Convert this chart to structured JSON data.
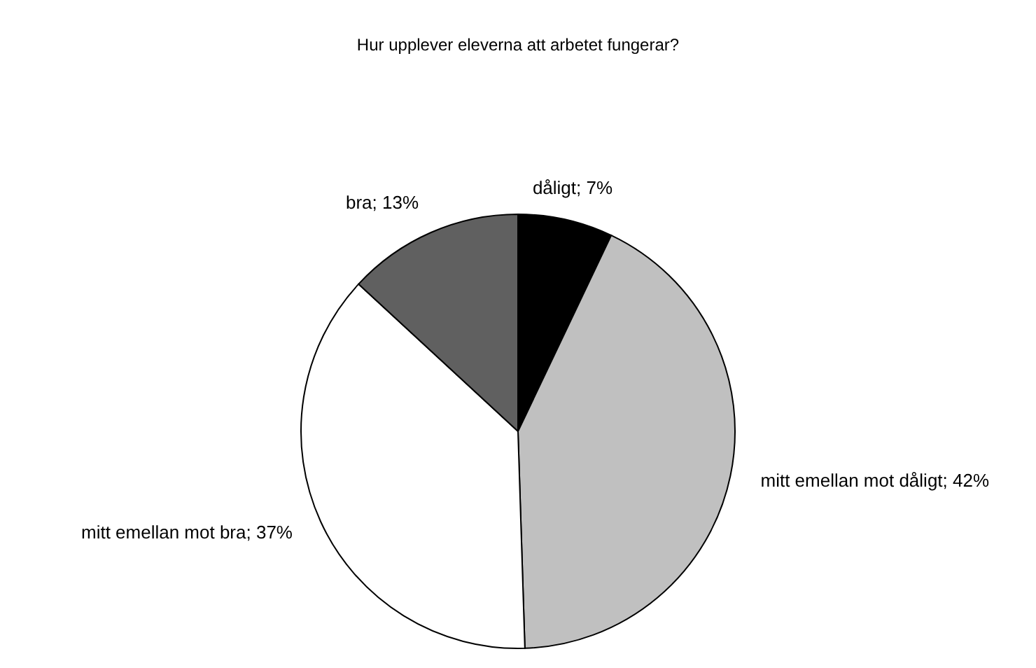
{
  "chart_data": {
    "type": "pie",
    "title": "Hur upplever eleverna att arbetet fungerar?",
    "categories": [
      "dåligt",
      "mitt emellan mot dåligt",
      "mitt emellan mot bra",
      "bra"
    ],
    "values": [
      7,
      42,
      37,
      13
    ],
    "colors": [
      "#000000",
      "#c0c0c0",
      "#ffffff",
      "#606060"
    ],
    "value_labels": [
      "; 7%",
      "; 42%",
      "; 37%",
      "; 13%"
    ],
    "legend": false
  }
}
